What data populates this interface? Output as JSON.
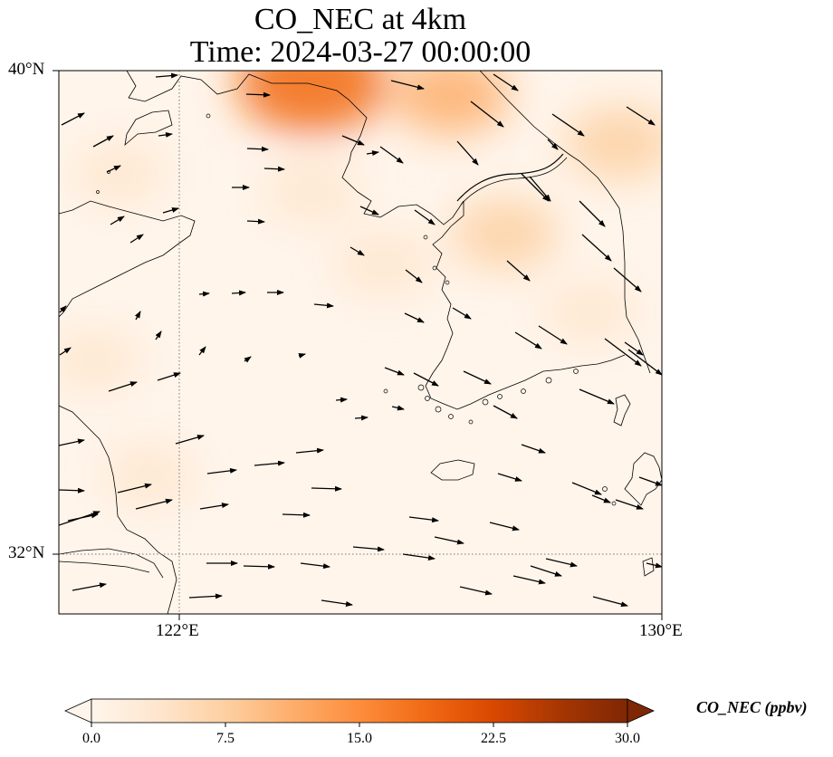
{
  "title": {
    "line1": "CO_NEC at 4km",
    "line2": "Time: 2024-03-27 00:00:00"
  },
  "map": {
    "extent": {
      "lon_min": 120,
      "lon_max": 130,
      "lat_min": 31,
      "lat_max": 40
    },
    "lat_ticks": [
      {
        "value": 40,
        "label": "40°N"
      },
      {
        "value": 32,
        "label": "32°N"
      }
    ],
    "lon_ticks": [
      {
        "value": 122,
        "label": "122°E"
      },
      {
        "value": 130,
        "label": "130°E"
      }
    ],
    "gridlines": {
      "lon": [
        122
      ],
      "lat": [
        32
      ],
      "style": "dotted"
    },
    "field_colors": [
      "#fff5eb",
      "#fee6ce",
      "#fdd0a2",
      "#fdae6b",
      "#fd8d3c",
      "#f16913",
      "#d94801",
      "#a63603",
      "#7f2704"
    ],
    "plumes": [
      {
        "lon": 124.2,
        "lat": 39.8,
        "value": 19
      },
      {
        "lon": 126.5,
        "lat": 39.6,
        "value": 10
      },
      {
        "lon": 129.3,
        "lat": 38.8,
        "value": 8
      },
      {
        "lon": 127.4,
        "lat": 37.3,
        "value": 7
      },
      {
        "lon": 125.4,
        "lat": 36.8,
        "value": 5
      },
      {
        "lon": 124.2,
        "lat": 38.0,
        "value": 4
      },
      {
        "lon": 121.0,
        "lat": 38.3,
        "value": 3.5
      },
      {
        "lon": 120.6,
        "lat": 35.2,
        "value": 3
      },
      {
        "lon": 121.5,
        "lat": 33.3,
        "value": 3
      },
      {
        "lon": 128.8,
        "lat": 36.0,
        "value": 3
      }
    ]
  },
  "colorbar": {
    "label": "CO_NEC (ppbv)",
    "extend": "both",
    "ticks": [
      "0.0",
      "7.5",
      "15.0",
      "22.5",
      "30.0"
    ],
    "min": 0,
    "max": 30,
    "colors": [
      "#fff5eb",
      "#fee6ce",
      "#fdd0a2",
      "#fdae6b",
      "#fd8d3c",
      "#f16913",
      "#d94801",
      "#a63603",
      "#7f2704"
    ]
  }
}
